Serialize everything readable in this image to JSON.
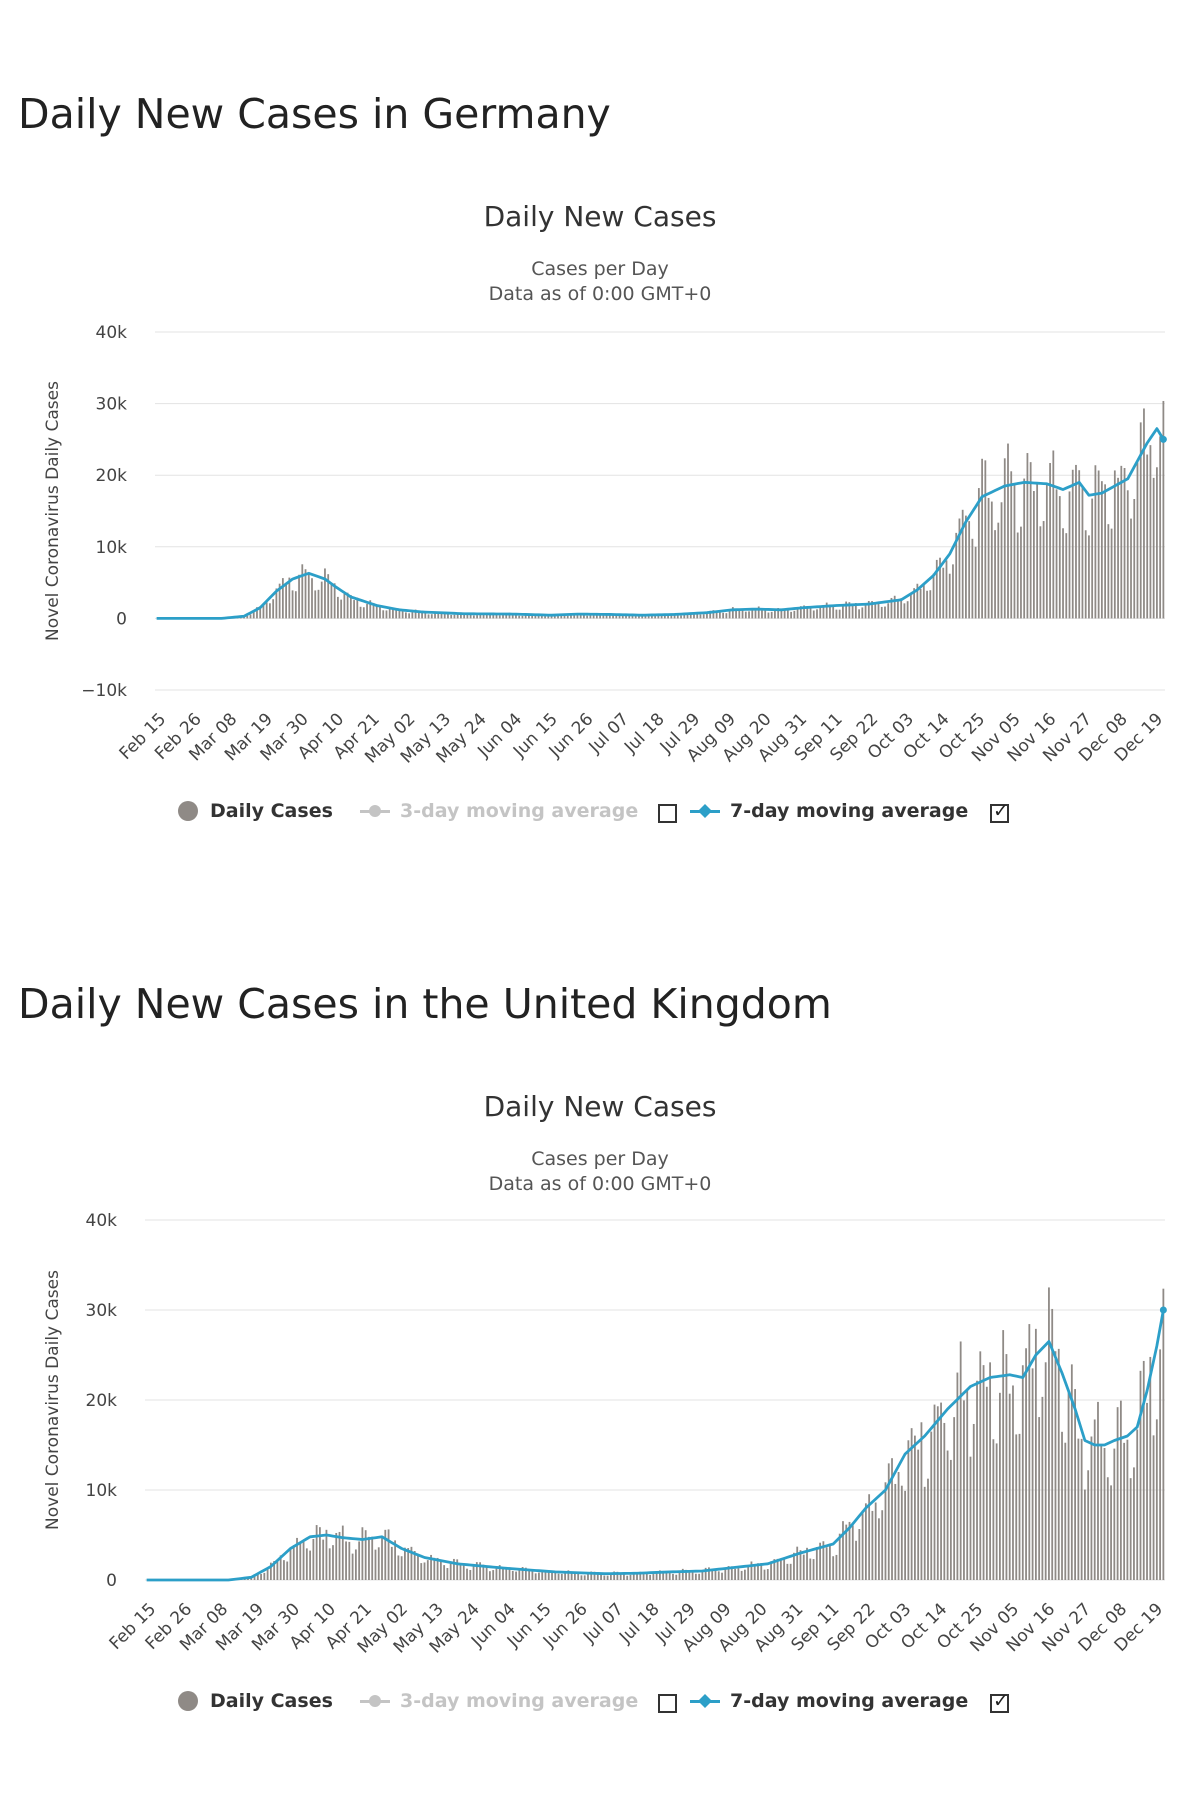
{
  "charts": [
    {
      "section_title": "Daily New Cases in Germany",
      "title": "Daily New Cases",
      "subtitle1": "Cases per Day",
      "subtitle2": "Data as of 0:00 GMT+0",
      "ylabel": "Novel Coronavirus Daily Cases",
      "ytick_labels": [
        "40k",
        "30k",
        "20k",
        "10k",
        "0",
        "−10k"
      ],
      "xtick_labels": [
        "Feb 15",
        "Feb 26",
        "Mar 08",
        "Mar 19",
        "Mar 30",
        "Apr 10",
        "Apr 21",
        "May 02",
        "May 13",
        "May 24",
        "Jun 04",
        "Jun 15",
        "Jun 26",
        "Jul 07",
        "Jul 18",
        "Jul 29",
        "Aug 09",
        "Aug 20",
        "Aug 31",
        "Sep 11",
        "Sep 22",
        "Oct 03",
        "Oct 14",
        "Oct 25",
        "Nov 05",
        "Nov 16",
        "Nov 27",
        "Dec 08",
        "Dec 19"
      ],
      "legend": {
        "daily": "Daily Cases",
        "ma3": "3-day moving average",
        "ma7": "7-day moving average",
        "ma3_checked": false,
        "ma7_checked": true,
        "checkmark": "✓"
      }
    },
    {
      "section_title": "Daily New Cases in the United Kingdom",
      "title": "Daily New Cases",
      "subtitle1": "Cases per Day",
      "subtitle2": "Data as of 0:00 GMT+0",
      "ylabel": "Novel Coronavirus Daily Cases",
      "ytick_labels": [
        "40k",
        "30k",
        "20k",
        "10k",
        "0"
      ],
      "xtick_labels": [
        "Feb 15",
        "Feb 26",
        "Mar 08",
        "Mar 19",
        "Mar 30",
        "Apr 10",
        "Apr 21",
        "May 02",
        "May 13",
        "May 24",
        "Jun 04",
        "Jun 15",
        "Jun 26",
        "Jul 07",
        "Jul 18",
        "Jul 29",
        "Aug 09",
        "Aug 20",
        "Aug 31",
        "Sep 11",
        "Sep 22",
        "Oct 03",
        "Oct 14",
        "Oct 25",
        "Nov 05",
        "Nov 16",
        "Nov 27",
        "Dec 08",
        "Dec 19"
      ],
      "legend": {
        "daily": "Daily Cases",
        "ma3": "3-day moving average",
        "ma7": "7-day moving average",
        "ma3_checked": false,
        "ma7_checked": true,
        "checkmark": "✓"
      }
    }
  ],
  "chart_data": [
    {
      "type": "bar",
      "title": "Daily New Cases",
      "subtitle": "Cases per Day — Data as of 0:00 GMT+0",
      "xlabel": "",
      "ylabel": "Novel Coronavirus Daily Cases",
      "ylim": [
        -10000,
        40000
      ],
      "ytick_values": [
        40000,
        30000,
        20000,
        10000,
        0,
        -10000
      ],
      "start_date": "Feb 15",
      "days": 312,
      "grid": true,
      "series": [
        {
          "name": "Daily Cases",
          "kind": "bar",
          "color": "#8f8a86",
          "profile_days": [
            0,
            20,
            27,
            32,
            37,
            42,
            47,
            52,
            55,
            60,
            68,
            75,
            82,
            95,
            110,
            122,
            130,
            140,
            150,
            160,
            170,
            178,
            185,
            193,
            200,
            210,
            220,
            230,
            235,
            240,
            245,
            250,
            255,
            262,
            268,
            275,
            280,
            285,
            288,
            292,
            296,
            300,
            303,
            306,
            309,
            311
          ],
          "profile_values": [
            0,
            0,
            300,
            1500,
            3800,
            5500,
            6300,
            5500,
            4500,
            3000,
            1800,
            1200,
            900,
            650,
            600,
            450,
            600,
            550,
            450,
            550,
            800,
            1200,
            1300,
            1200,
            1500,
            1800,
            2000,
            2600,
            4000,
            6000,
            9000,
            13500,
            17000,
            18500,
            19000,
            18800,
            18000,
            19000,
            17200,
            17500,
            18500,
            19500,
            22000,
            24500,
            26500,
            25000
          ]
        },
        {
          "name": "7-day moving average",
          "kind": "line",
          "color": "#2c9fc8",
          "profile_days": [
            0,
            20,
            27,
            32,
            37,
            42,
            47,
            52,
            55,
            60,
            68,
            75,
            82,
            95,
            110,
            122,
            130,
            140,
            150,
            160,
            170,
            178,
            185,
            193,
            200,
            210,
            220,
            230,
            235,
            240,
            245,
            250,
            255,
            262,
            268,
            275,
            280,
            285,
            288,
            292,
            296,
            300,
            303,
            306,
            309,
            311
          ],
          "profile_values": [
            0,
            0,
            300,
            1500,
            3800,
            5500,
            6300,
            5500,
            4500,
            3000,
            1800,
            1200,
            900,
            650,
            600,
            450,
            600,
            550,
            450,
            550,
            800,
            1200,
            1300,
            1200,
            1500,
            1800,
            2000,
            2600,
            4000,
            6000,
            9000,
            13500,
            17000,
            18500,
            19000,
            18800,
            18000,
            19000,
            17200,
            17500,
            18500,
            19500,
            22000,
            24500,
            26500,
            25000
          ]
        }
      ],
      "legend_position": "bottom"
    },
    {
      "type": "bar",
      "title": "Daily New Cases",
      "subtitle": "Cases per Day — Data as of 0:00 GMT+0",
      "xlabel": "",
      "ylabel": "Novel Coronavirus Daily Cases",
      "ylim": [
        0,
        40000
      ],
      "ytick_values": [
        40000,
        30000,
        20000,
        10000,
        0
      ],
      "start_date": "Feb 15",
      "days": 312,
      "grid": true,
      "series": [
        {
          "name": "Daily Cases",
          "kind": "bar",
          "color": "#8f8a86",
          "profile_days": [
            0,
            25,
            32,
            38,
            44,
            50,
            55,
            60,
            66,
            72,
            78,
            85,
            95,
            110,
            125,
            140,
            150,
            160,
            170,
            180,
            190,
            200,
            210,
            215,
            220,
            226,
            232,
            238,
            245,
            252,
            258,
            264,
            268,
            272,
            276,
            280,
            284,
            287,
            290,
            293,
            296,
            300,
            303,
            306,
            309,
            311
          ],
          "profile_values": [
            0,
            0,
            300,
            1500,
            3500,
            4800,
            5000,
            4700,
            4500,
            4800,
            3500,
            2500,
            1800,
            1300,
            900,
            700,
            750,
            900,
            1000,
            1400,
            1800,
            3000,
            4000,
            5800,
            8000,
            10000,
            14000,
            16000,
            19000,
            21500,
            22500,
            22800,
            22500,
            25000,
            26500,
            23000,
            19000,
            15500,
            15000,
            15000,
            15500,
            16000,
            17000,
            21000,
            26000,
            30000
          ]
        },
        {
          "name": "7-day moving average",
          "kind": "line",
          "color": "#2c9fc8",
          "profile_days": [
            0,
            25,
            32,
            38,
            44,
            50,
            55,
            60,
            66,
            72,
            78,
            85,
            95,
            110,
            125,
            140,
            150,
            160,
            170,
            180,
            190,
            200,
            210,
            215,
            220,
            226,
            232,
            238,
            245,
            252,
            258,
            264,
            268,
            272,
            276,
            280,
            284,
            287,
            290,
            293,
            296,
            300,
            303,
            306,
            309,
            311
          ],
          "profile_values": [
            0,
            0,
            300,
            1500,
            3500,
            4800,
            5000,
            4700,
            4500,
            4800,
            3500,
            2500,
            1800,
            1300,
            900,
            700,
            750,
            900,
            1000,
            1400,
            1800,
            3000,
            4000,
            5800,
            8000,
            10000,
            14000,
            16000,
            19000,
            21500,
            22500,
            22800,
            22500,
            25000,
            26500,
            23000,
            19000,
            15500,
            15000,
            15000,
            15500,
            16000,
            17000,
            21000,
            26000,
            30000
          ]
        }
      ],
      "legend_position": "bottom"
    }
  ]
}
